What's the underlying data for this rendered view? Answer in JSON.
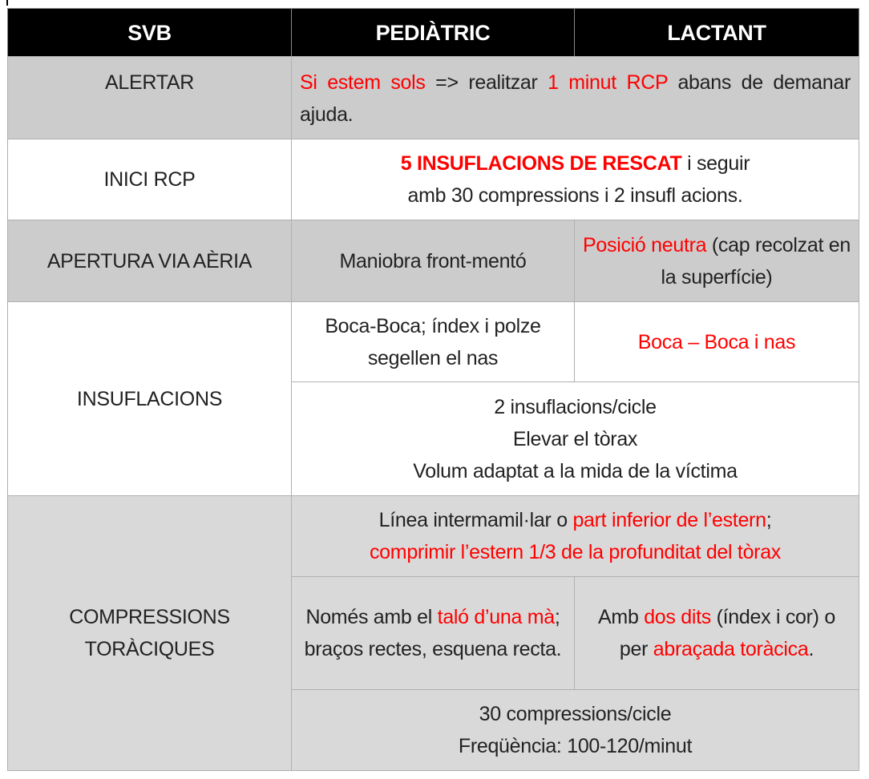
{
  "header": [
    "SVB",
    "PEDIÀTRIC",
    "LACTANT"
  ],
  "cells": {
    "alertar_label": [
      {
        "t": "ALERTAR"
      }
    ],
    "alertar": [
      {
        "t": "Si estem sols",
        "red": true
      },
      {
        "t": " => realitzar "
      },
      {
        "t": "1 minut RCP",
        "red": true
      },
      {
        "t": " abans de demanar ajuda."
      }
    ],
    "inici_label": [
      {
        "t": "INICI RCP"
      }
    ],
    "inici": [
      {
        "t": "5 INSUFLACIONS DE RESCAT",
        "red": true,
        "bold": true
      },
      {
        "t": " i seguir amb 30 compressions i 2 insufl acions."
      }
    ],
    "apertura_label": [
      {
        "t": "APERTURA VIA AÈRIA"
      }
    ],
    "apertura_ped": [
      {
        "t": "Maniobra front-mentó"
      }
    ],
    "apertura_lac": [
      {
        "t": "Posició neutra",
        "red": true
      },
      {
        "t": " (cap recolzat en la superfície)"
      }
    ],
    "insuf_label": [
      {
        "t": "INSUFLACIONS"
      }
    ],
    "insuf_ped": [
      {
        "t": "Boca-Boca; índex i polze segellen el nas"
      }
    ],
    "insuf_lac": [
      {
        "t": "Boca – Boca i nas",
        "red": true
      }
    ],
    "insuf_common": [
      {
        "t": "2 insuflacions/cicle",
        "br": true
      },
      {
        "t": "Elevar el tòrax",
        "br": true
      },
      {
        "t": "Volum adaptat a la mida de la víctima"
      }
    ],
    "comp_label": [
      {
        "t": "COMPRESSIONS TORÀCIQUES"
      }
    ],
    "comp_common": [
      {
        "t": "Línea intermamil·lar o "
      },
      {
        "t": "part inferior de l’estern",
        "red": true
      },
      {
        "t": "; ",
        "br": true
      },
      {
        "t": "comprimir l’estern 1/3 de la profunditat del tòrax",
        "red": true
      }
    ],
    "comp_ped": [
      {
        "t": "Només amb el "
      },
      {
        "t": "taló d’una mà",
        "red": true
      },
      {
        "t": "; braços rectes, esquena recta."
      }
    ],
    "comp_lac": [
      {
        "t": "Amb "
      },
      {
        "t": "dos dits",
        "red": true
      },
      {
        "t": " (índex i cor) o per "
      },
      {
        "t": "abraçada toràcica",
        "red": true
      },
      {
        "t": "."
      }
    ],
    "comp_freq": [
      {
        "t": "30 compressions/cicle",
        "br": true
      },
      {
        "t": "Freqüència: 100-120/minut"
      }
    ]
  },
  "colors": {
    "header_bg": "#000000",
    "gray_dark": "#cccccc",
    "gray_light": "#d9d9d9",
    "highlight": "#ff0000"
  }
}
